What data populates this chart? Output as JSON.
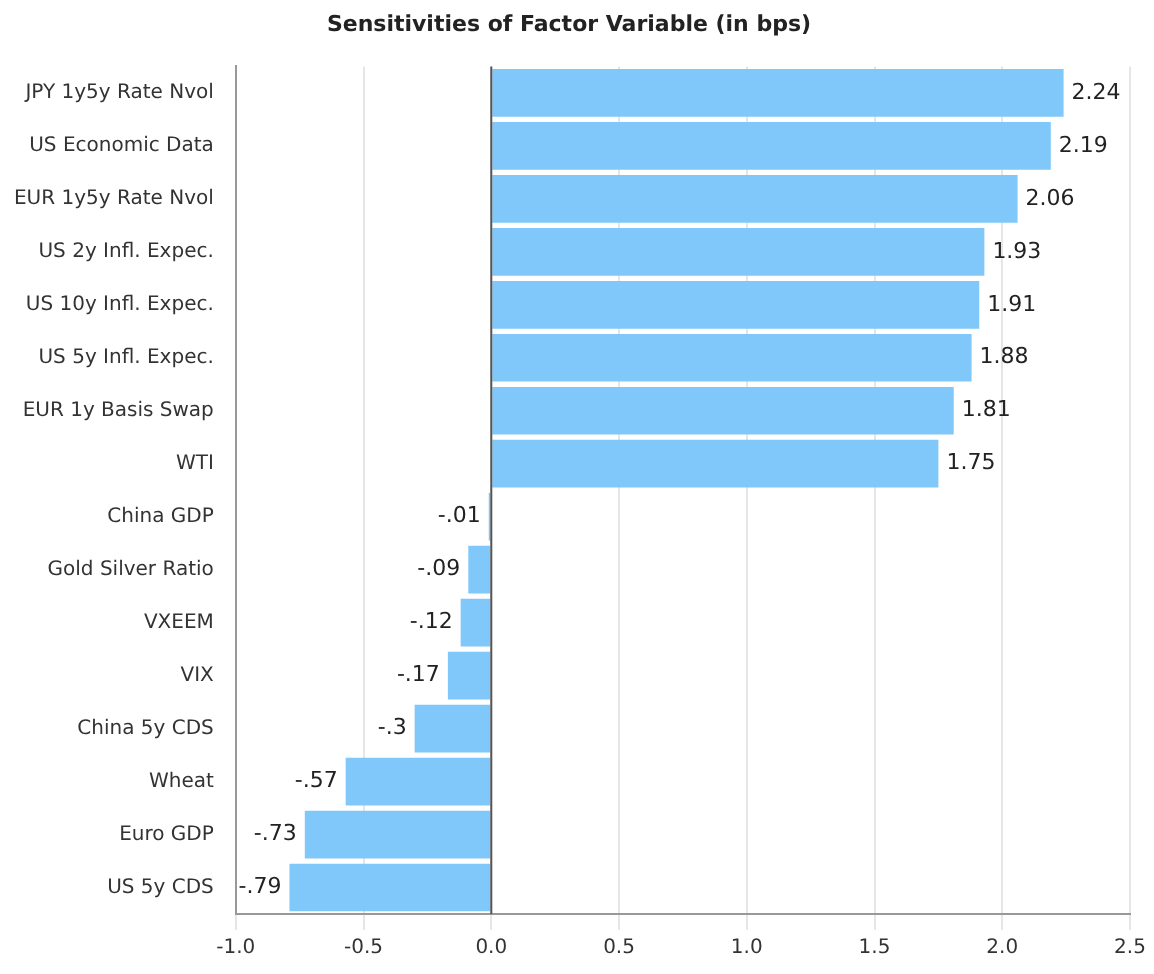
{
  "chart_data": {
    "type": "bar",
    "orientation": "horizontal",
    "title": "Sensitivities of Factor Variable (in bps)",
    "categories": [
      "JPY 1y5y Rate Nvol",
      "US Economic Data",
      "EUR 1y5y Rate Nvol",
      "US 2y Infl. Expec.",
      "US 10y Infl. Expec.",
      "US 5y Infl. Expec.",
      "EUR 1y Basis Swap",
      "WTI",
      "China GDP",
      "Gold Silver Ratio",
      "VXEEM",
      "VIX",
      "China 5y CDS",
      "Wheat",
      "Euro GDP",
      "US 5y CDS"
    ],
    "values": [
      2.24,
      2.19,
      2.06,
      1.93,
      1.91,
      1.88,
      1.81,
      1.75,
      -0.01,
      -0.09,
      -0.12,
      -0.17,
      -0.3,
      -0.57,
      -0.73,
      -0.79
    ],
    "value_labels": [
      "2.24",
      "2.19",
      "2.06",
      "1.93",
      "1.91",
      "1.88",
      "1.81",
      "1.75",
      "-.01",
      "-.09",
      "-.12",
      "-.17",
      "-.3",
      "-.57",
      "-.73",
      "-.79"
    ],
    "color": "#80c8fa",
    "xlim": [
      -1,
      2.5
    ],
    "xticks": [
      {
        "value": -1,
        "label": "-1.0"
      },
      {
        "value": -0.5,
        "label": "-0.5"
      },
      {
        "value": 0,
        "label": "0.0"
      },
      {
        "value": 0.5,
        "label": "0.5"
      },
      {
        "value": 1,
        "label": "1.0"
      },
      {
        "value": 1.5,
        "label": "1.5"
      },
      {
        "value": 2,
        "label": "2.0"
      },
      {
        "value": 2.5,
        "label": "2.5"
      }
    ],
    "grid": "x",
    "legend": false
  }
}
